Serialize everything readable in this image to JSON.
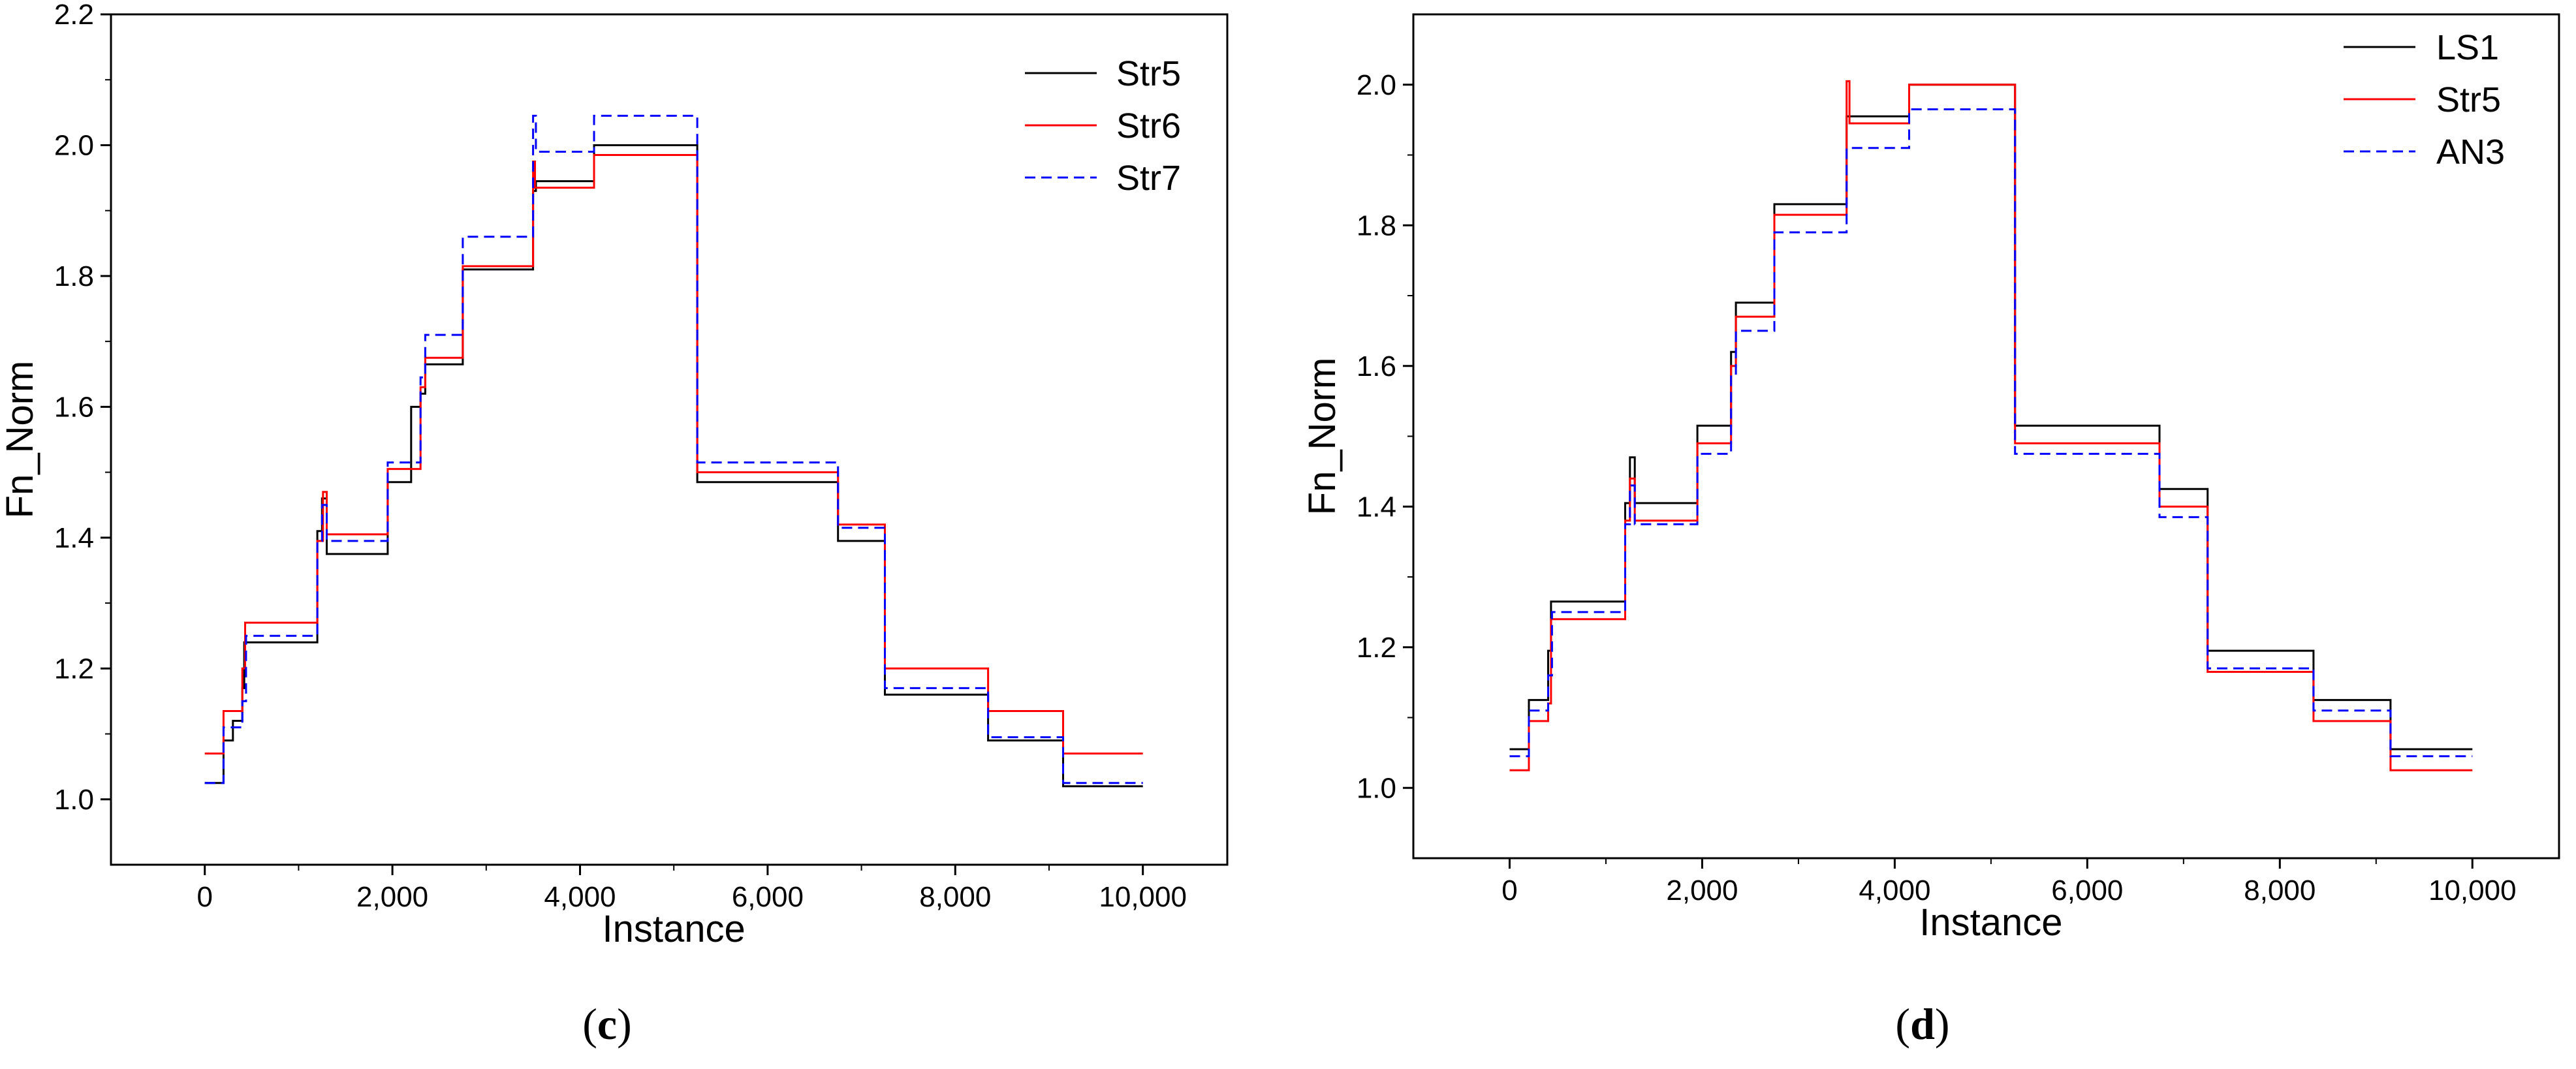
{
  "chart_data": [
    {
      "type": "line",
      "panel": "c",
      "caption_open": "(",
      "caption_letter": "c",
      "caption_close": ")",
      "xlabel": "Instance",
      "ylabel": "Fn_Norm",
      "xlim": [
        -1000,
        10900
      ],
      "ylim": [
        0.9,
        2.2
      ],
      "xticks": [
        0,
        2000,
        4000,
        6000,
        8000,
        10000
      ],
      "xtick_labels": [
        "0",
        "2,000",
        "4,000",
        "6,000",
        "8,000",
        "10,000"
      ],
      "yticks": [
        1.0,
        1.2,
        1.4,
        1.6,
        1.8,
        2.0,
        2.2
      ],
      "ytick_labels": [
        "1.0",
        "1.2",
        "1.4",
        "1.6",
        "1.8",
        "2.0",
        "2.2"
      ],
      "legend_position": "top-right",
      "series": [
        {
          "name": "Str5",
          "color": "#000000",
          "dash": "solid",
          "x": [
            0,
            200,
            200,
            300,
            300,
            400,
            400,
            420,
            420,
            1200,
            1200,
            1250,
            1250,
            1300,
            1300,
            1950,
            1950,
            2200,
            2200,
            2300,
            2300,
            2350,
            2350,
            2750,
            2750,
            3500,
            3500,
            3530,
            3530,
            4150,
            4150,
            5250,
            5250,
            6750,
            6750,
            7250,
            7250,
            8350,
            8350,
            9150,
            9150,
            10000
          ],
          "y": [
            1.025,
            1.025,
            1.09,
            1.09,
            1.12,
            1.12,
            1.17,
            1.17,
            1.24,
            1.24,
            1.41,
            1.41,
            1.46,
            1.46,
            1.375,
            1.375,
            1.485,
            1.485,
            1.6,
            1.6,
            1.62,
            1.62,
            1.665,
            1.665,
            1.81,
            1.81,
            1.93,
            1.93,
            1.945,
            1.945,
            2.0,
            2.0,
            1.485,
            1.485,
            1.395,
            1.395,
            1.16,
            1.16,
            1.09,
            1.09,
            1.02,
            1.02
          ]
        },
        {
          "name": "Str6",
          "color": "#ff0000",
          "dash": "solid",
          "x": [
            0,
            200,
            200,
            400,
            400,
            430,
            430,
            1200,
            1200,
            1260,
            1260,
            1300,
            1300,
            1950,
            1950,
            2300,
            2300,
            2350,
            2350,
            2750,
            2750,
            3500,
            3500,
            3520,
            3520,
            4150,
            4150,
            5250,
            5250,
            6750,
            6750,
            7250,
            7250,
            8350,
            8350,
            9150,
            9150,
            10000
          ],
          "y": [
            1.07,
            1.07,
            1.135,
            1.135,
            1.2,
            1.2,
            1.27,
            1.27,
            1.395,
            1.395,
            1.47,
            1.47,
            1.405,
            1.405,
            1.505,
            1.505,
            1.63,
            1.63,
            1.675,
            1.675,
            1.815,
            1.815,
            1.975,
            1.975,
            1.935,
            1.935,
            1.985,
            1.985,
            1.5,
            1.5,
            1.42,
            1.42,
            1.2,
            1.2,
            1.135,
            1.135,
            1.07,
            1.07
          ]
        },
        {
          "name": "Str7",
          "color": "#0000ff",
          "dash": "dashed",
          "x": [
            0,
            200,
            200,
            400,
            400,
            440,
            440,
            1200,
            1200,
            1250,
            1250,
            1300,
            1300,
            1950,
            1950,
            2300,
            2300,
            2350,
            2350,
            2750,
            2750,
            3500,
            3500,
            3530,
            3530,
            4150,
            4150,
            5250,
            5250,
            6750,
            6750,
            7250,
            7250,
            8350,
            8350,
            9150,
            9150,
            10000
          ],
          "y": [
            1.025,
            1.025,
            1.11,
            1.11,
            1.15,
            1.15,
            1.25,
            1.25,
            1.395,
            1.395,
            1.45,
            1.45,
            1.395,
            1.395,
            1.515,
            1.515,
            1.645,
            1.645,
            1.71,
            1.71,
            1.86,
            1.86,
            2.045,
            2.045,
            1.99,
            1.99,
            2.045,
            2.045,
            1.515,
            1.515,
            1.415,
            1.415,
            1.17,
            1.17,
            1.095,
            1.095,
            1.025,
            1.025
          ]
        }
      ]
    },
    {
      "type": "line",
      "panel": "d",
      "caption_open": "(",
      "caption_letter": "d",
      "caption_close": ")",
      "xlabel": "Instance",
      "ylabel": "Fn_Norm",
      "xlim": [
        -1000,
        10900
      ],
      "ylim": [
        0.9,
        2.1
      ],
      "xticks": [
        0,
        2000,
        4000,
        6000,
        8000,
        10000
      ],
      "xtick_labels": [
        "0",
        "2,000",
        "4,000",
        "6,000",
        "8,000",
        "10,000"
      ],
      "yticks": [
        1.0,
        1.2,
        1.4,
        1.6,
        1.8,
        2.0
      ],
      "ytick_labels": [
        "1.0",
        "1.2",
        "1.4",
        "1.6",
        "1.8",
        "2.0"
      ],
      "legend_position": "top-right",
      "series": [
        {
          "name": "LS1",
          "color": "#000000",
          "dash": "solid",
          "x": [
            0,
            200,
            200,
            400,
            400,
            430,
            430,
            1200,
            1200,
            1250,
            1250,
            1300,
            1300,
            1950,
            1950,
            2300,
            2300,
            2350,
            2350,
            2750,
            2750,
            3500,
            3500,
            3530,
            3530,
            4150,
            4150,
            5250,
            5250,
            6750,
            6750,
            7250,
            7250,
            8350,
            8350,
            9150,
            9150,
            10000
          ],
          "y": [
            1.055,
            1.055,
            1.125,
            1.125,
            1.195,
            1.195,
            1.265,
            1.265,
            1.405,
            1.405,
            1.47,
            1.47,
            1.405,
            1.405,
            1.515,
            1.515,
            1.62,
            1.62,
            1.69,
            1.69,
            1.83,
            1.83,
            1.955,
            1.955,
            1.955,
            1.955,
            2.0,
            2.0,
            1.515,
            1.515,
            1.425,
            1.425,
            1.195,
            1.195,
            1.125,
            1.125,
            1.055,
            1.055
          ]
        },
        {
          "name": "Str5",
          "color": "#ff0000",
          "dash": "solid",
          "x": [
            0,
            200,
            200,
            400,
            400,
            430,
            430,
            1200,
            1200,
            1250,
            1250,
            1300,
            1300,
            1950,
            1950,
            2300,
            2300,
            2350,
            2350,
            2750,
            2750,
            3500,
            3500,
            3530,
            3530,
            4150,
            4150,
            5250,
            5250,
            6750,
            6750,
            7250,
            7250,
            8350,
            8350,
            9150,
            9150,
            10000
          ],
          "y": [
            1.025,
            1.025,
            1.095,
            1.095,
            1.12,
            1.12,
            1.24,
            1.24,
            1.38,
            1.38,
            1.44,
            1.44,
            1.38,
            1.38,
            1.49,
            1.49,
            1.6,
            1.6,
            1.67,
            1.67,
            1.815,
            1.815,
            2.005,
            2.005,
            1.945,
            1.945,
            2.0,
            2.0,
            1.49,
            1.49,
            1.4,
            1.4,
            1.165,
            1.165,
            1.095,
            1.095,
            1.025,
            1.025
          ]
        },
        {
          "name": "AN3",
          "color": "#0000ff",
          "dash": "dashed",
          "x": [
            0,
            200,
            200,
            400,
            400,
            440,
            440,
            1200,
            1200,
            1250,
            1250,
            1300,
            1300,
            1950,
            1950,
            2300,
            2300,
            2350,
            2350,
            2750,
            2750,
            3500,
            3500,
            3530,
            3530,
            4150,
            4150,
            5250,
            5250,
            6750,
            6750,
            7250,
            7250,
            8350,
            8350,
            9150,
            9150,
            10000
          ],
          "y": [
            1.045,
            1.045,
            1.11,
            1.11,
            1.16,
            1.16,
            1.25,
            1.25,
            1.375,
            1.375,
            1.43,
            1.43,
            1.375,
            1.375,
            1.475,
            1.475,
            1.585,
            1.585,
            1.65,
            1.65,
            1.79,
            1.79,
            1.91,
            1.91,
            1.91,
            1.91,
            1.965,
            1.965,
            1.475,
            1.475,
            1.385,
            1.385,
            1.17,
            1.17,
            1.11,
            1.11,
            1.045,
            1.045
          ]
        }
      ]
    }
  ]
}
